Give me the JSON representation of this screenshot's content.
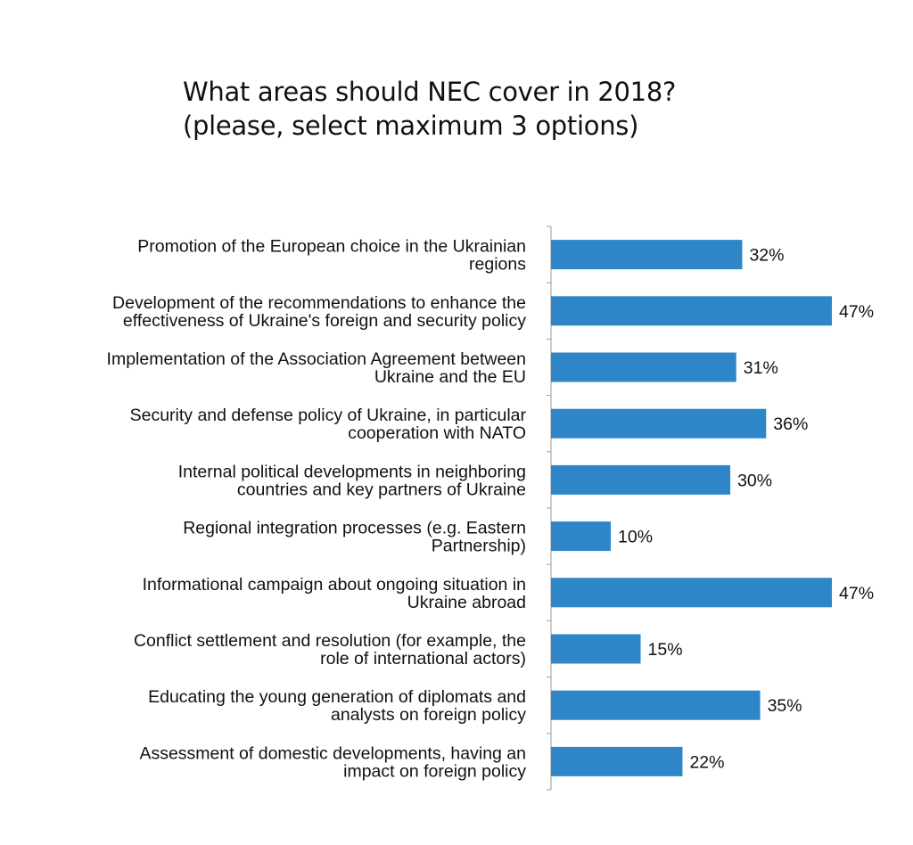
{
  "chart_data": {
    "type": "bar",
    "orientation": "horizontal",
    "title": "What areas should NEC cover in 2018?",
    "subtitle": "(please, select maximum 3 options)",
    "xlabel": "",
    "ylabel": "",
    "value_suffix": "%",
    "xlim": [
      0,
      47
    ],
    "grid": false,
    "legend": "none",
    "bar_color": "#2e86c8",
    "categories": [
      [
        "Promotion of the European choice in the Ukrainian",
        "regions"
      ],
      [
        "Development of the recommendations to enhance the",
        "effectiveness of Ukraine's foreign and security policy"
      ],
      [
        "Implementation of the Association Agreement between",
        "Ukraine and the EU"
      ],
      [
        "Security and defense policy of Ukraine, in particular",
        "cooperation with NATO"
      ],
      [
        "Internal political developments in neighboring",
        "countries and key partners of Ukraine"
      ],
      [
        "Regional integration processes (e.g. Eastern",
        "Partnership)"
      ],
      [
        "Informational campaign about ongoing situation in",
        "Ukraine abroad"
      ],
      [
        "Conflict settlement and resolution (for example, the",
        "role of international actors)"
      ],
      [
        "Educating the young generation of diplomats and",
        "analysts on foreign policy"
      ],
      [
        "Assessment of domestic developments, having an",
        "impact on foreign policy"
      ]
    ],
    "values": [
      32,
      47,
      31,
      36,
      30,
      10,
      47,
      15,
      35,
      22
    ]
  }
}
